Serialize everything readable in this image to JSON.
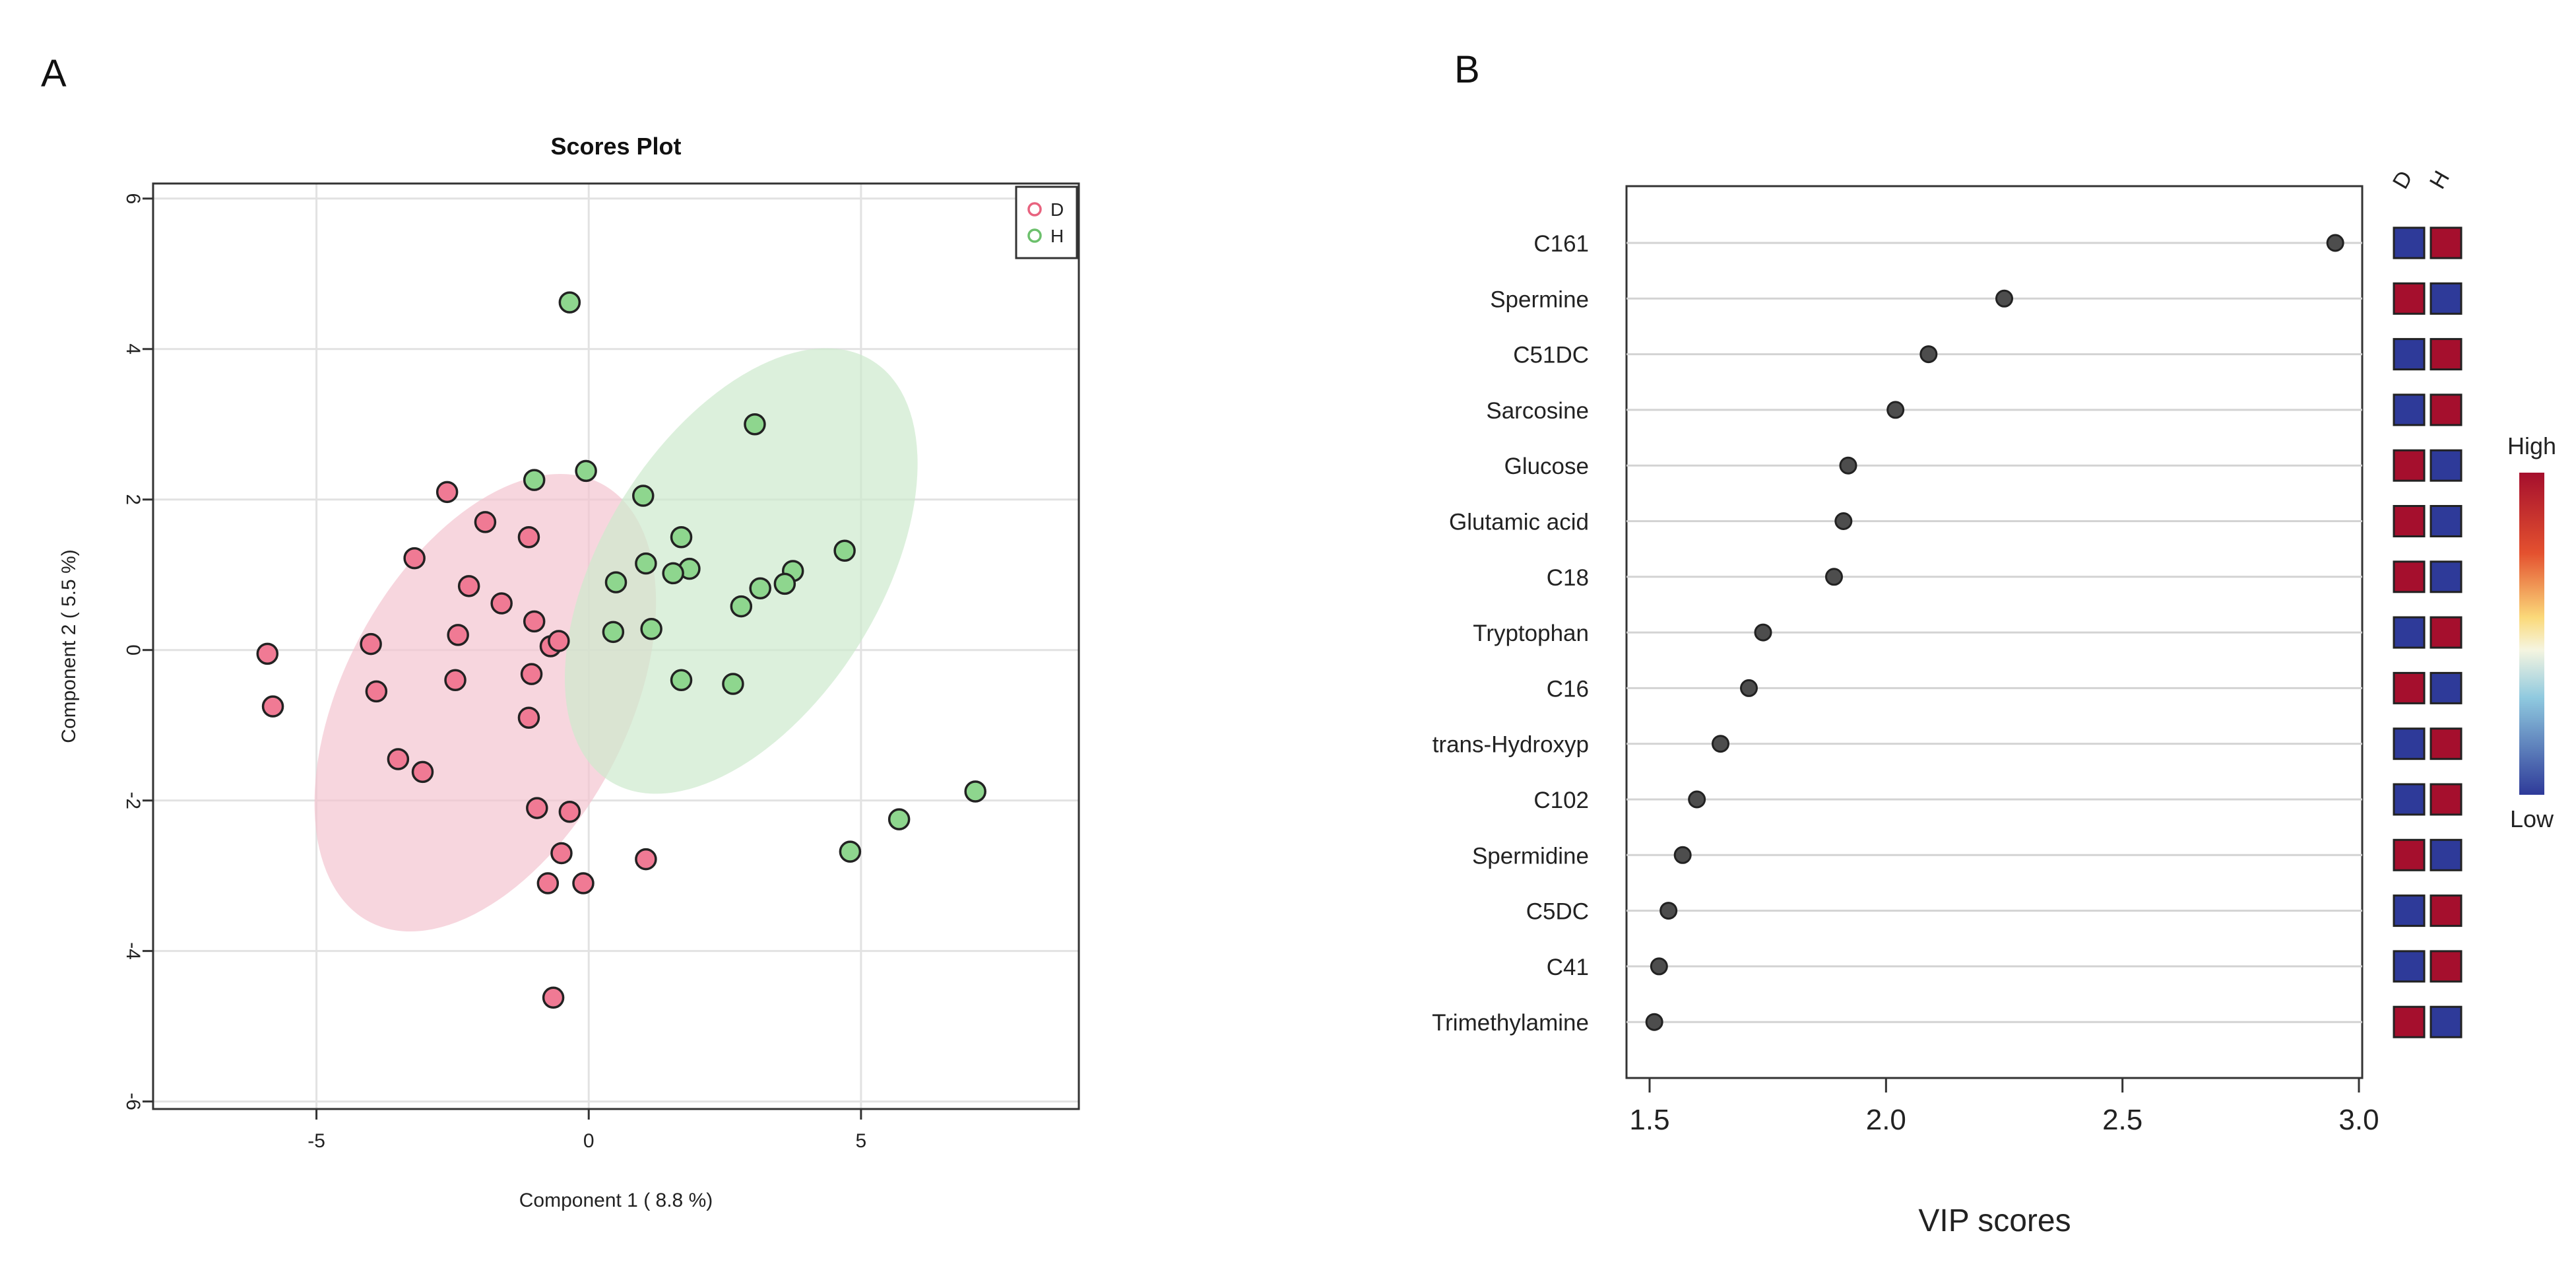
{
  "panelA": {
    "letter": "A",
    "chart_data": {
      "type": "scatter",
      "title": "Scores Plot",
      "xlabel": "Component 1 ( 8.8 %)",
      "ylabel": "Component 2 ( 5.5 %)",
      "xlim": [
        -8,
        9
      ],
      "ylim": [
        -6.1,
        6.2
      ],
      "xticks": [
        -5,
        0,
        5
      ],
      "yticks": [
        -6,
        -4,
        -2,
        0,
        2,
        4,
        6
      ],
      "legend_position": "top-right",
      "colors": {
        "D": "#e8637f",
        "H": "#6cc06c",
        "D_fill": "#f07a94",
        "H_fill": "#8ed68e",
        "D_ellipse": "#f4c4d0",
        "H_ellipse": "#cdeacd"
      },
      "series": [
        {
          "name": "D",
          "ellipse": {
            "cx": -1.9,
            "cy": -0.7,
            "rx": 4.55,
            "ry": 2.6,
            "angle_deg": 62
          },
          "points": [
            [
              -5.9,
              -0.05
            ],
            [
              -5.8,
              -0.75
            ],
            [
              -3.2,
              1.22
            ],
            [
              -2.6,
              2.1
            ],
            [
              -1.9,
              1.7
            ],
            [
              -2.2,
              0.85
            ],
            [
              -1.6,
              0.62
            ],
            [
              -1.1,
              1.5
            ],
            [
              -1.0,
              0.38
            ],
            [
              -4.0,
              0.08
            ],
            [
              -3.9,
              -0.55
            ],
            [
              -2.4,
              0.2
            ],
            [
              -2.45,
              -0.4
            ],
            [
              -1.05,
              -0.32
            ],
            [
              -0.7,
              0.05
            ],
            [
              -0.55,
              0.12
            ],
            [
              -1.1,
              -0.9
            ],
            [
              -3.5,
              -1.45
            ],
            [
              -3.05,
              -1.62
            ],
            [
              -0.95,
              -2.1
            ],
            [
              -0.35,
              -2.15
            ],
            [
              -0.5,
              -2.7
            ],
            [
              -0.75,
              -3.1
            ],
            [
              -0.1,
              -3.1
            ],
            [
              1.05,
              -2.78
            ],
            [
              -0.65,
              -4.62
            ]
          ]
        },
        {
          "name": "H",
          "ellipse": {
            "cx": 2.8,
            "cy": 1.05,
            "rx": 4.55,
            "ry": 2.55,
            "angle_deg": 58
          },
          "points": [
            [
              -0.35,
              4.62
            ],
            [
              3.05,
              3.0
            ],
            [
              -0.05,
              2.38
            ],
            [
              -1.0,
              2.26
            ],
            [
              1.0,
              2.05
            ],
            [
              1.7,
              1.5
            ],
            [
              4.7,
              1.32
            ],
            [
              1.05,
              1.15
            ],
            [
              1.85,
              1.08
            ],
            [
              1.55,
              1.02
            ],
            [
              3.75,
              1.05
            ],
            [
              0.5,
              0.9
            ],
            [
              3.15,
              0.82
            ],
            [
              3.6,
              0.88
            ],
            [
              2.8,
              0.58
            ],
            [
              0.45,
              0.24
            ],
            [
              1.15,
              0.28
            ],
            [
              1.7,
              -0.4
            ],
            [
              2.65,
              -0.45
            ],
            [
              7.1,
              -1.88
            ],
            [
              5.7,
              -2.25
            ],
            [
              4.8,
              -2.68
            ]
          ]
        }
      ]
    }
  },
  "panelB": {
    "letter": "B",
    "chart_data": {
      "type": "dot",
      "xlabel": "VIP scores",
      "xlim": [
        1.45,
        3.0
      ],
      "xticks": [
        1.5,
        2.0,
        2.5,
        3.0
      ],
      "xtick_labels": [
        "1.5",
        "2.0",
        "2.5",
        "3.0"
      ],
      "heatmap_columns": [
        "D",
        "H"
      ],
      "heatmap_colors": {
        "High": "#a50f2d",
        "Low": "#2e3a99"
      },
      "colorbar_labels": {
        "high": "High",
        "low": "Low"
      },
      "categories": [
        "C161",
        "Spermine",
        "C51DC",
        "Sarcosine",
        "Glucose",
        "Glutamic acid",
        "C18",
        "Tryptophan",
        "C16",
        "trans-Hydroxyp",
        "C102",
        "Spermidine",
        "C5DC",
        "C41",
        "Trimethylamine"
      ],
      "values": [
        2.95,
        2.25,
        2.09,
        2.02,
        1.92,
        1.91,
        1.89,
        1.74,
        1.71,
        1.65,
        1.6,
        1.57,
        1.54,
        1.52,
        1.51
      ],
      "heatmap": [
        [
          "Low",
          "High"
        ],
        [
          "High",
          "Low"
        ],
        [
          "Low",
          "High"
        ],
        [
          "Low",
          "High"
        ],
        [
          "High",
          "Low"
        ],
        [
          "High",
          "Low"
        ],
        [
          "High",
          "Low"
        ],
        [
          "Low",
          "High"
        ],
        [
          "High",
          "Low"
        ],
        [
          "Low",
          "High"
        ],
        [
          "Low",
          "High"
        ],
        [
          "High",
          "Low"
        ],
        [
          "Low",
          "High"
        ],
        [
          "Low",
          "High"
        ],
        [
          "High",
          "Low"
        ]
      ]
    }
  }
}
